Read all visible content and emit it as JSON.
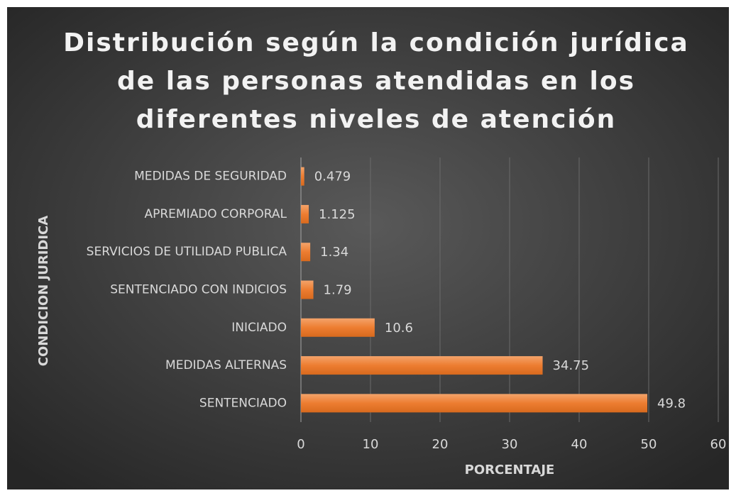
{
  "chart_data": {
    "type": "hbar",
    "title": [
      "Distribución según la condición jurídica",
      "de las personas atendidas en los",
      "diferentes niveles de atención"
    ],
    "x_label": "PORCENTAJE",
    "y_label": "CONDICION JURIDICA",
    "categories": [
      "MEDIDAS DE SEGURIDAD",
      "APREMIADO CORPORAL",
      "SERVICIOS DE UTILIDAD PUBLICA",
      "SENTENCIADO CON INDICIOS",
      "INICIADO",
      "MEDIDAS ALTERNAS",
      "SENTENCIADO"
    ],
    "values": [
      0.479,
      1.125,
      1.34,
      1.79,
      10.6,
      34.75,
      49.8
    ],
    "color": "#ed7d31",
    "xlim": [
      0,
      60
    ],
    "xticks": [
      0,
      10,
      20,
      30,
      40,
      50,
      60
    ],
    "grid": true
  }
}
